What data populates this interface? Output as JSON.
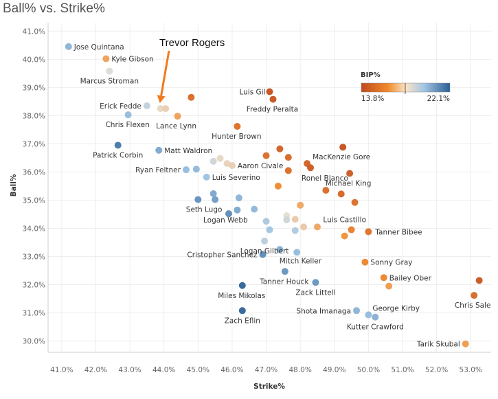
{
  "chart_data": {
    "type": "scatter",
    "title": "Ball% vs. Strike%",
    "xlabel": "Strike%",
    "ylabel": "Ball%",
    "xlim": [
      40.6,
      53.6
    ],
    "ylim": [
      29.6,
      41.3
    ],
    "x_ticks": [
      "41.0%",
      "42.0%",
      "43.0%",
      "44.0%",
      "45.0%",
      "46.0%",
      "47.0%",
      "48.0%",
      "49.0%",
      "50.0%",
      "51.0%",
      "52.0%",
      "53.0%"
    ],
    "y_ticks": [
      "30.0%",
      "31.0%",
      "32.0%",
      "33.0%",
      "34.0%",
      "35.0%",
      "36.0%",
      "37.0%",
      "38.0%",
      "39.0%",
      "40.0%",
      "41.0%"
    ],
    "grid": true,
    "color_legend": {
      "title": "BIP%",
      "min_label": "13.8%",
      "max_label": "22.1%",
      "min": 13.8,
      "max": 22.1,
      "placement": "top-right"
    },
    "annotation": {
      "text": "Trevor Rogers",
      "target_x": 43.9,
      "target_y": 38.25
    },
    "points": [
      {
        "name": "Jose Quintana",
        "x": 41.2,
        "y": 40.45,
        "bip": 20.0
      },
      {
        "name": "Kyle Gibson",
        "x": 42.3,
        "y": 40.02,
        "bip": 16.7
      },
      {
        "name": "Marcus Stroman",
        "x": 42.4,
        "y": 39.58,
        "bip": 18.2
      },
      {
        "name": "Luis Gil",
        "x": 47.1,
        "y": 38.85,
        "bip": 14.0
      },
      {
        "name": "Freddy Peralta",
        "x": 47.2,
        "y": 38.58,
        "bip": 14.1
      },
      {
        "name": "",
        "x": 44.8,
        "y": 38.65,
        "bip": 15.0
      },
      {
        "name": "Erick Fedde",
        "x": 43.5,
        "y": 38.35,
        "bip": 18.8
      },
      {
        "name": "",
        "x": 43.9,
        "y": 38.25,
        "bip": 17.8
      },
      {
        "name": "",
        "x": 44.05,
        "y": 38.25,
        "bip": 17.6
      },
      {
        "name": "Lance Lynn",
        "x": 44.4,
        "y": 37.98,
        "bip": 16.7
      },
      {
        "name": "Chris Flexen",
        "x": 42.95,
        "y": 38.03,
        "bip": 19.8
      },
      {
        "name": "Hunter Brown",
        "x": 46.15,
        "y": 37.62,
        "bip": 15.2
      },
      {
        "name": "Patrick Corbin",
        "x": 42.65,
        "y": 36.95,
        "bip": 21.5
      },
      {
        "name": "Matt Waldron",
        "x": 43.85,
        "y": 36.77,
        "bip": 20.3
      },
      {
        "name": "",
        "x": 49.25,
        "y": 36.88,
        "bip": 14.0
      },
      {
        "name": "",
        "x": 47.4,
        "y": 36.82,
        "bip": 14.6
      },
      {
        "name": "",
        "x": 47.0,
        "y": 36.58,
        "bip": 15.1
      },
      {
        "name": "",
        "x": 47.65,
        "y": 36.52,
        "bip": 14.9
      },
      {
        "name": "MacKenzie Gore",
        "x": 48.2,
        "y": 36.3,
        "bip": 14.6
      },
      {
        "name": "",
        "x": 48.3,
        "y": 36.15,
        "bip": 14.4
      },
      {
        "name": "",
        "x": 45.65,
        "y": 36.48,
        "bip": 17.8
      },
      {
        "name": "",
        "x": 45.45,
        "y": 36.38,
        "bip": 18.5
      },
      {
        "name": "",
        "x": 45.85,
        "y": 36.3,
        "bip": 17.7
      },
      {
        "name": "Aaron Civale",
        "x": 46.0,
        "y": 36.23,
        "bip": 17.6
      },
      {
        "name": "Ryan Feltner",
        "x": 44.65,
        "y": 36.08,
        "bip": 19.8
      },
      {
        "name": "",
        "x": 44.95,
        "y": 36.1,
        "bip": 19.9
      },
      {
        "name": "",
        "x": 47.65,
        "y": 36.05,
        "bip": 15.1
      },
      {
        "name": "Michael King",
        "x": 49.45,
        "y": 35.95,
        "bip": 14.3
      },
      {
        "name": "Luis Severino",
        "x": 45.25,
        "y": 35.82,
        "bip": 19.6
      },
      {
        "name": "Ronel Blanco",
        "x": 47.35,
        "y": 35.5,
        "bip": 16.2
      },
      {
        "name": "",
        "x": 48.75,
        "y": 35.35,
        "bip": 15.0
      },
      {
        "name": "",
        "x": 49.2,
        "y": 35.22,
        "bip": 14.8
      },
      {
        "name": "",
        "x": 45.45,
        "y": 35.23,
        "bip": 20.3
      },
      {
        "name": "",
        "x": 46.2,
        "y": 35.08,
        "bip": 20.0
      },
      {
        "name": "",
        "x": 45.0,
        "y": 35.02,
        "bip": 20.9
      },
      {
        "name": "Seth Lugo",
        "x": 45.5,
        "y": 35.02,
        "bip": 20.6
      },
      {
        "name": "",
        "x": 49.6,
        "y": 34.92,
        "bip": 15.1
      },
      {
        "name": "",
        "x": 48.0,
        "y": 34.82,
        "bip": 16.8
      },
      {
        "name": "",
        "x": 46.65,
        "y": 34.68,
        "bip": 19.9
      },
      {
        "name": "Logan Webb",
        "x": 46.15,
        "y": 34.65,
        "bip": 20.3
      },
      {
        "name": "",
        "x": 45.9,
        "y": 34.52,
        "bip": 21.0
      },
      {
        "name": "",
        "x": 47.6,
        "y": 34.45,
        "bip": 18.0
      },
      {
        "name": "Luis Castillo",
        "x": 47.85,
        "y": 34.32,
        "bip": 17.5
      },
      {
        "name": "",
        "x": 47.6,
        "y": 34.3,
        "bip": 18.5
      },
      {
        "name": "",
        "x": 47.0,
        "y": 34.25,
        "bip": 19.3
      },
      {
        "name": "",
        "x": 48.1,
        "y": 34.05,
        "bip": 17.5
      },
      {
        "name": "",
        "x": 48.5,
        "y": 34.05,
        "bip": 16.8
      },
      {
        "name": "",
        "x": 47.1,
        "y": 33.95,
        "bip": 19.5
      },
      {
        "name": "",
        "x": 47.85,
        "y": 33.92,
        "bip": 19.2
      },
      {
        "name": "",
        "x": 49.5,
        "y": 33.95,
        "bip": 15.8
      },
      {
        "name": "Tanner Bibee",
        "x": 50.0,
        "y": 33.88,
        "bip": 15.3
      },
      {
        "name": "",
        "x": 49.3,
        "y": 33.73,
        "bip": 16.4
      },
      {
        "name": "Logan Gilbert",
        "x": 46.95,
        "y": 33.55,
        "bip": 19.0
      },
      {
        "name": "Mitch Keller",
        "x": 47.4,
        "y": 33.25,
        "bip": 20.2
      },
      {
        "name": "",
        "x": 47.9,
        "y": 33.15,
        "bip": 19.8
      },
      {
        "name": "Cristopher Sanchez",
        "x": 46.9,
        "y": 33.07,
        "bip": 21.0
      },
      {
        "name": "Sonny Gray",
        "x": 49.9,
        "y": 32.8,
        "bip": 16.1
      },
      {
        "name": "Tanner Houck",
        "x": 47.55,
        "y": 32.47,
        "bip": 20.8
      },
      {
        "name": "Bailey Ober",
        "x": 50.45,
        "y": 32.25,
        "bip": 16.0
      },
      {
        "name": "",
        "x": 50.6,
        "y": 31.95,
        "bip": 16.6
      },
      {
        "name": "Zack Littell",
        "x": 48.45,
        "y": 32.08,
        "bip": 20.8
      },
      {
        "name": "Miles Mikolas",
        "x": 46.3,
        "y": 31.97,
        "bip": 22.0
      },
      {
        "name": "",
        "x": 53.25,
        "y": 32.15,
        "bip": 14.2
      },
      {
        "name": "Chris Sale",
        "x": 53.1,
        "y": 31.62,
        "bip": 14.9
      },
      {
        "name": "Zach Eflin",
        "x": 46.3,
        "y": 31.08,
        "bip": 22.0
      },
      {
        "name": "Shota Imanaga",
        "x": 49.65,
        "y": 31.08,
        "bip": 20.0
      },
      {
        "name": "George Kirby",
        "x": 50.0,
        "y": 30.93,
        "bip": 19.8
      },
      {
        "name": "Kutter Crawford",
        "x": 50.2,
        "y": 30.85,
        "bip": 20.1
      },
      {
        "name": "Tarik Skubal",
        "x": 52.85,
        "y": 29.9,
        "bip": 16.6
      }
    ]
  }
}
